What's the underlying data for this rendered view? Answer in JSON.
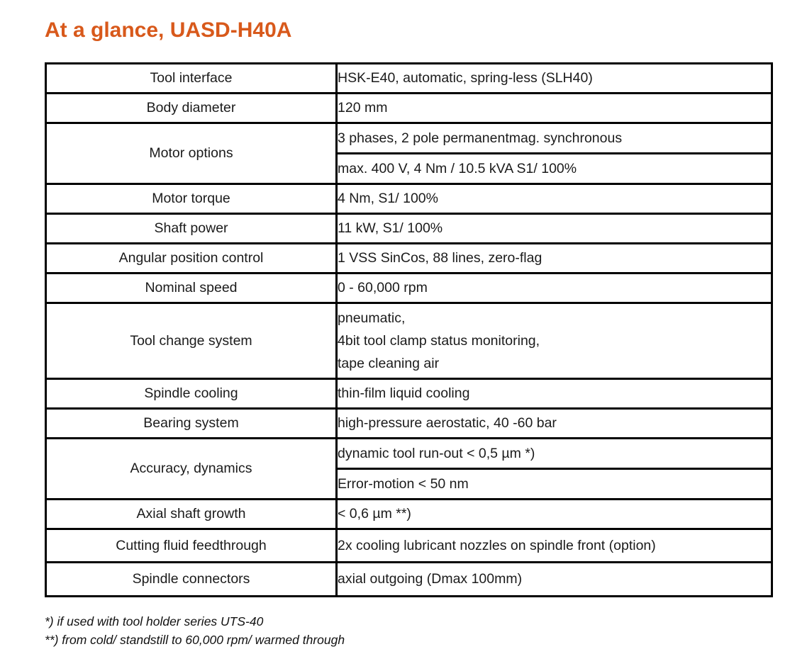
{
  "page": {
    "title": "At a glance, UASD-H40A",
    "title_color": "#d8591b"
  },
  "table": {
    "rows": [
      {
        "label": "Tool interface",
        "values": [
          "HSK-E40, automatic, spring-less (SLH40)"
        ]
      },
      {
        "label": "Body diameter",
        "values": [
          "120 mm"
        ]
      },
      {
        "label": "Motor options",
        "values": [
          "3 phases, 2 pole permanentmag. synchronous",
          "max. 400 V, 4 Nm / 10.5 kVA S1/ 100%"
        ]
      },
      {
        "label": "Motor torque",
        "values": [
          "4 Nm, S1/ 100%"
        ]
      },
      {
        "label": "Shaft power",
        "values": [
          "11 kW, S1/ 100%"
        ]
      },
      {
        "label": "Angular position control",
        "values": [
          "1 VSS SinCos, 88 lines, zero-flag"
        ]
      },
      {
        "label": "Nominal speed",
        "values": [
          "0 - 60,000 rpm"
        ]
      },
      {
        "label": "Tool change system",
        "values": [
          "pneumatic,\n4bit tool clamp status monitoring,\ntape cleaning air"
        ]
      },
      {
        "label": "Spindle cooling",
        "values": [
          "thin-film liquid cooling"
        ]
      },
      {
        "label": "Bearing system",
        "values": [
          "high-pressure aerostatic, 40 -60 bar"
        ]
      },
      {
        "label": "Accuracy, dynamics",
        "values": [
          "dynamic tool run-out < 0,5 µm *)",
          "Error-motion < 50 nm"
        ]
      },
      {
        "label": "Axial shaft growth",
        "values": [
          "< 0,6 µm **)"
        ]
      },
      {
        "label": "Cutting fluid feedthrough",
        "values": [
          "2x cooling lubricant nozzles on spindle front (option)"
        ]
      },
      {
        "label": "Spindle connectors",
        "values": [
          "axial outgoing (Dmax 100mm)"
        ]
      }
    ]
  },
  "footnotes": [
    "*) if used with tool holder series UTS-40",
    "**) from cold/ standstill to 60,000 rpm/ warmed through"
  ]
}
